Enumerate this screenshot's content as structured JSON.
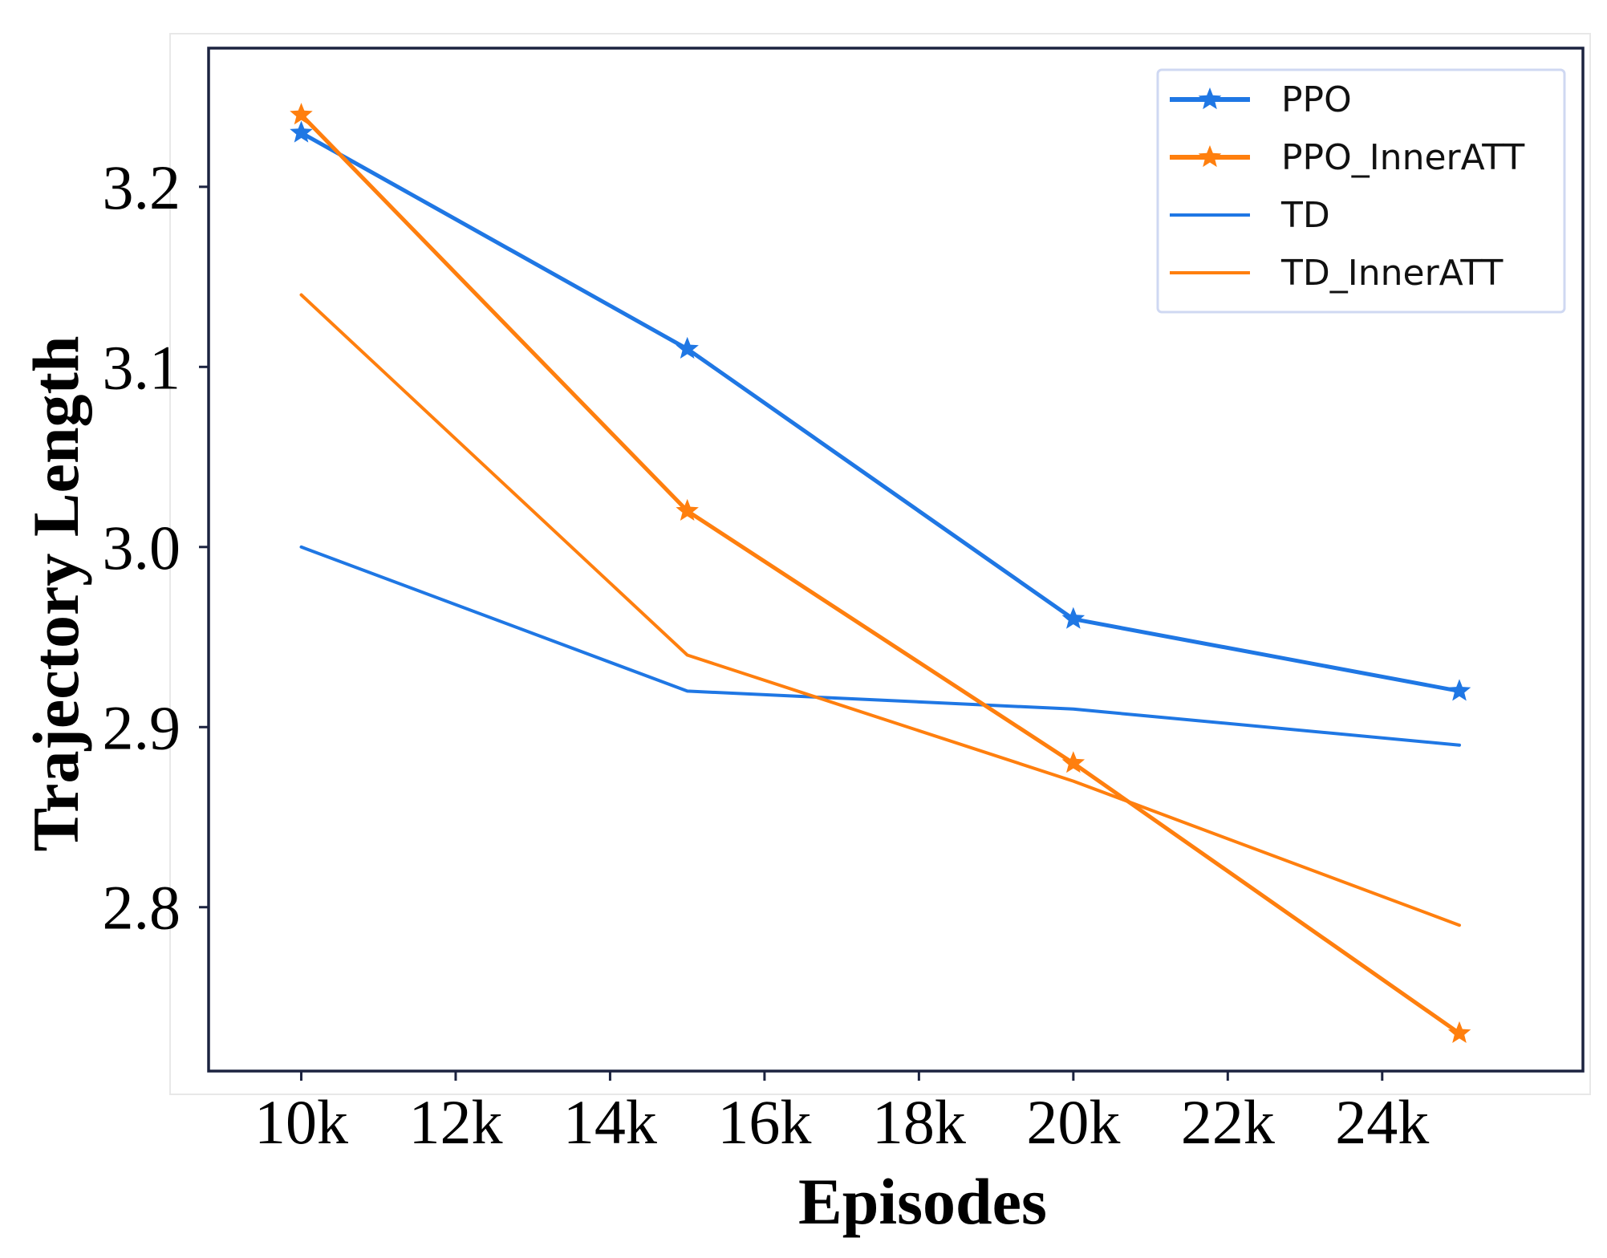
{
  "chart_data": {
    "type": "line",
    "title": "",
    "xlabel": "Episodes",
    "ylabel": "Trajectory Length",
    "x": [
      10000,
      15000,
      20000,
      25000
    ],
    "xlim": [
      8800,
      26600
    ],
    "ylim": [
      2.709,
      3.277
    ],
    "xticks": [
      10000,
      12000,
      14000,
      16000,
      18000,
      20000,
      22000,
      24000
    ],
    "xtick_labels": [
      "10k",
      "12k",
      "14k",
      "16k",
      "18k",
      "20k",
      "22k",
      "24k"
    ],
    "yticks": [
      2.8,
      2.9,
      3.0,
      3.1,
      3.2
    ],
    "ytick_labels": [
      "2.8",
      "2.9",
      "3.0",
      "3.1",
      "3.2"
    ],
    "grid": false,
    "legend_position": "top-right",
    "series": [
      {
        "name": "PPO",
        "values": [
          3.23,
          3.11,
          2.96,
          2.92
        ],
        "color": "#1f77e4",
        "marker": "star",
        "linewidth": "thick"
      },
      {
        "name": "PPO_InnerATT",
        "values": [
          3.24,
          3.02,
          2.88,
          2.73
        ],
        "color": "#ff7f0e",
        "marker": "star",
        "linewidth": "thick"
      },
      {
        "name": "TD",
        "values": [
          3.0,
          2.92,
          2.91,
          2.89
        ],
        "color": "#1f77e4",
        "marker": "none",
        "linewidth": "thin"
      },
      {
        "name": "TD_InnerATT",
        "values": [
          3.14,
          2.94,
          2.87,
          2.79
        ],
        "color": "#ff7f0e",
        "marker": "none",
        "linewidth": "thin"
      }
    ]
  }
}
